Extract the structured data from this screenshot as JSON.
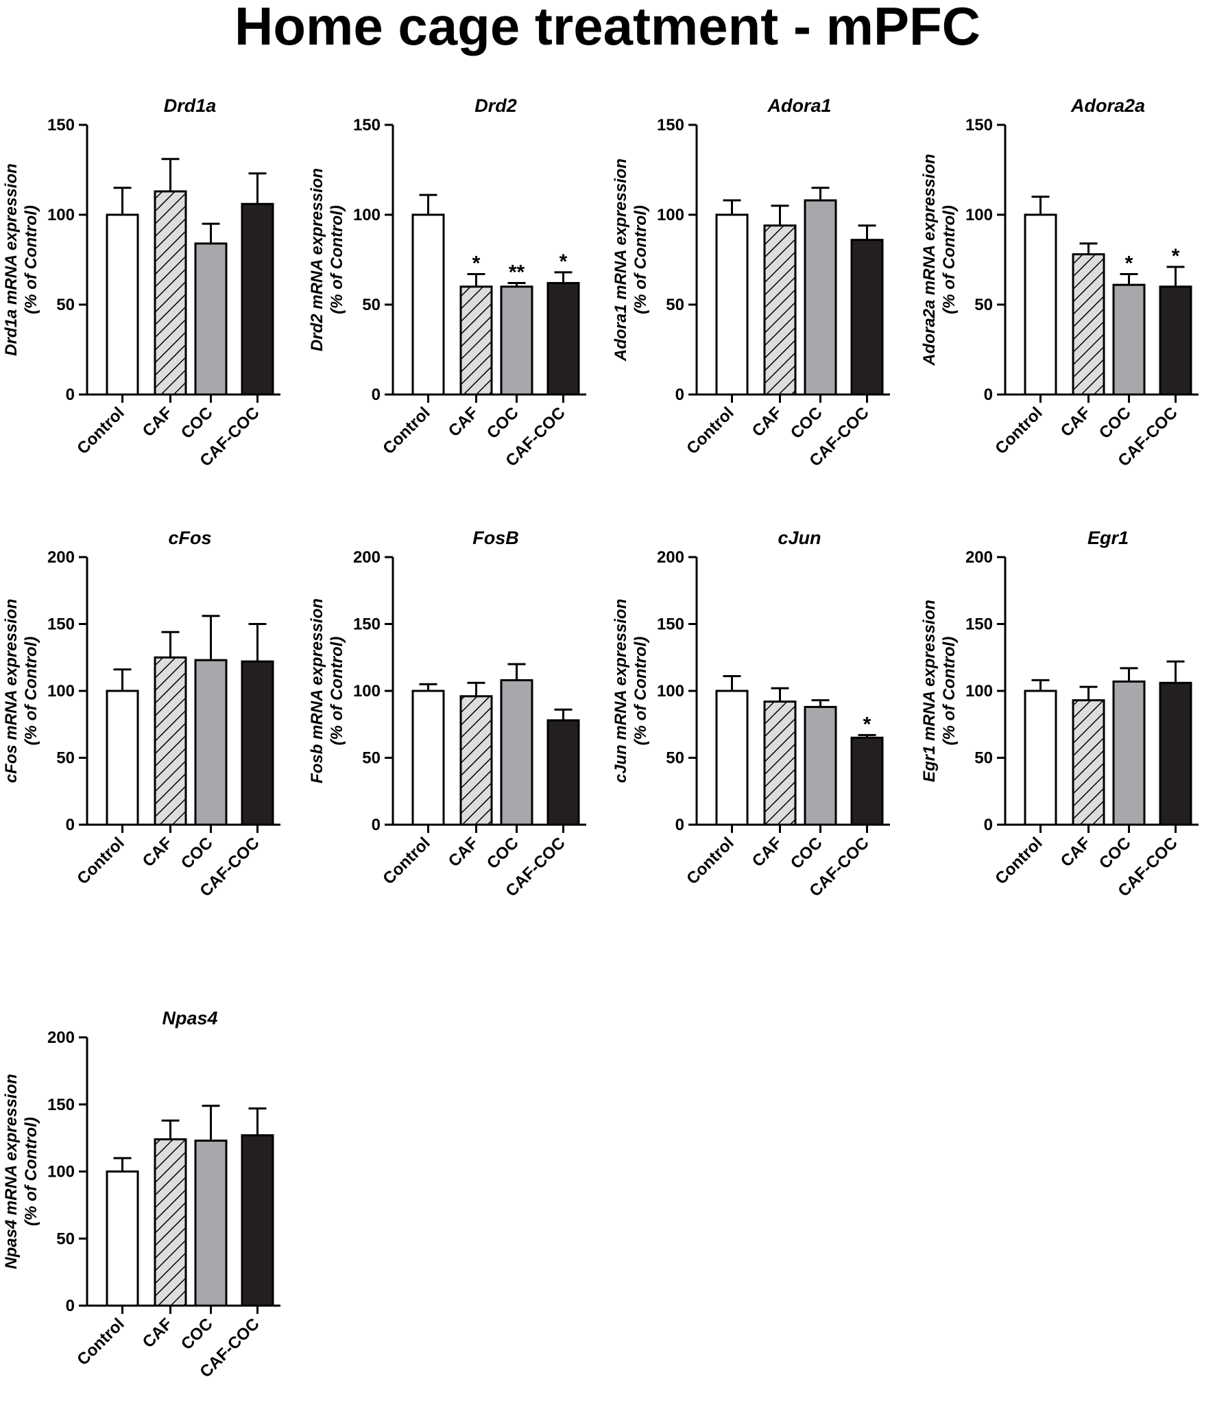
{
  "figure_title": "Home cage treatment - mPFC",
  "colors": {
    "control": "#ffffff",
    "caf": "#dddddd",
    "coc": "#a7a8ab",
    "cafcoc": "#231f20",
    "stroke": "#000000"
  },
  "chart_data": [
    {
      "type": "bar",
      "title": "Drd1a",
      "ylabel": "Drd1a mRNA expression",
      "ylabel2": "(% of Control)",
      "categories": [
        "Control",
        "CAF",
        "COC",
        "CAF-COC"
      ],
      "values": [
        100,
        113,
        84,
        106
      ],
      "errors": [
        15,
        18,
        11,
        17
      ],
      "significance": [
        "",
        "",
        "",
        ""
      ],
      "ylim": [
        0,
        150
      ],
      "yticks": [
        0,
        50,
        100,
        150
      ],
      "patterns": [
        "open",
        "hatched",
        "gray",
        "black"
      ]
    },
    {
      "type": "bar",
      "title": "Drd2",
      "ylabel": "Drd2 mRNA expression",
      "ylabel2": "(% of Control)",
      "categories": [
        "Control",
        "CAF",
        "COC",
        "CAF-COC"
      ],
      "values": [
        100,
        60,
        60,
        62
      ],
      "errors": [
        11,
        7,
        2,
        6
      ],
      "significance": [
        "",
        "*",
        "**",
        "*"
      ],
      "ylim": [
        0,
        150
      ],
      "yticks": [
        0,
        50,
        100,
        150
      ],
      "patterns": [
        "open",
        "hatched",
        "gray",
        "black"
      ]
    },
    {
      "type": "bar",
      "title": "Adora1",
      "ylabel": "Adora1 mRNA expression",
      "ylabel2": "(% of Control)",
      "categories": [
        "Control",
        "CAF",
        "COC",
        "CAF-COC"
      ],
      "values": [
        100,
        94,
        108,
        86
      ],
      "errors": [
        8,
        11,
        7,
        8
      ],
      "significance": [
        "",
        "",
        "",
        ""
      ],
      "ylim": [
        0,
        150
      ],
      "yticks": [
        0,
        50,
        100,
        150
      ],
      "patterns": [
        "open",
        "hatched",
        "gray",
        "black"
      ]
    },
    {
      "type": "bar",
      "title": "Adora2a",
      "ylabel": "Adora2a mRNA expression",
      "ylabel2": "(% of Control)",
      "categories": [
        "Control",
        "CAF",
        "COC",
        "CAF-COC"
      ],
      "values": [
        100,
        78,
        61,
        60
      ],
      "errors": [
        10,
        6,
        6,
        11
      ],
      "significance": [
        "",
        "",
        "*",
        "*"
      ],
      "ylim": [
        0,
        150
      ],
      "yticks": [
        0,
        50,
        100,
        150
      ],
      "patterns": [
        "open",
        "hatched",
        "gray",
        "black"
      ]
    },
    {
      "type": "bar",
      "title": "cFos",
      "ylabel": "cFos mRNA expression",
      "ylabel2": "(% of Control)",
      "categories": [
        "Control",
        "CAF",
        "COC",
        "CAF-COC"
      ],
      "values": [
        100,
        125,
        123,
        122
      ],
      "errors": [
        16,
        19,
        33,
        28
      ],
      "significance": [
        "",
        "",
        "",
        ""
      ],
      "ylim": [
        0,
        200
      ],
      "yticks": [
        0,
        50,
        100,
        150,
        200
      ],
      "patterns": [
        "open",
        "hatched",
        "gray",
        "black"
      ]
    },
    {
      "type": "bar",
      "title": "FosB",
      "ylabel": "Fosb mRNA expression",
      "ylabel2": "(% of Control)",
      "categories": [
        "Control",
        "CAF",
        "COC",
        "CAF-COC"
      ],
      "values": [
        100,
        96,
        108,
        78
      ],
      "errors": [
        5,
        10,
        12,
        8
      ],
      "significance": [
        "",
        "",
        "",
        ""
      ],
      "ylim": [
        0,
        200
      ],
      "yticks": [
        0,
        50,
        100,
        150,
        200
      ],
      "patterns": [
        "open",
        "hatched",
        "gray",
        "black"
      ]
    },
    {
      "type": "bar",
      "title": "cJun",
      "ylabel": "cJun mRNA expression",
      "ylabel2": "(% of Control)",
      "categories": [
        "Control",
        "CAF",
        "COC",
        "CAF-COC"
      ],
      "values": [
        100,
        92,
        88,
        65
      ],
      "errors": [
        11,
        10,
        5,
        2
      ],
      "significance": [
        "",
        "",
        "",
        "*"
      ],
      "ylim": [
        0,
        200
      ],
      "yticks": [
        0,
        50,
        100,
        150,
        200
      ],
      "patterns": [
        "open",
        "hatched",
        "gray",
        "black"
      ]
    },
    {
      "type": "bar",
      "title": "Egr1",
      "ylabel": "Egr1 mRNA expression",
      "ylabel2": "(% of Control)",
      "categories": [
        "Control",
        "CAF",
        "COC",
        "CAF-COC"
      ],
      "values": [
        100,
        93,
        107,
        106
      ],
      "errors": [
        8,
        10,
        10,
        16
      ],
      "significance": [
        "",
        "",
        "",
        ""
      ],
      "ylim": [
        0,
        200
      ],
      "yticks": [
        0,
        50,
        100,
        150,
        200
      ],
      "patterns": [
        "open",
        "hatched",
        "gray",
        "black"
      ]
    },
    {
      "type": "bar",
      "title": "Npas4",
      "ylabel": "Npas4 mRNA expression",
      "ylabel2": "(% of Control)",
      "categories": [
        "Control",
        "CAF",
        "COC",
        "CAF-COC"
      ],
      "values": [
        100,
        124,
        123,
        127
      ],
      "errors": [
        10,
        14,
        26,
        20
      ],
      "significance": [
        "",
        "",
        "",
        ""
      ],
      "ylim": [
        0,
        200
      ],
      "yticks": [
        0,
        50,
        100,
        150,
        200
      ],
      "patterns": [
        "open",
        "hatched",
        "gray",
        "black"
      ]
    }
  ]
}
